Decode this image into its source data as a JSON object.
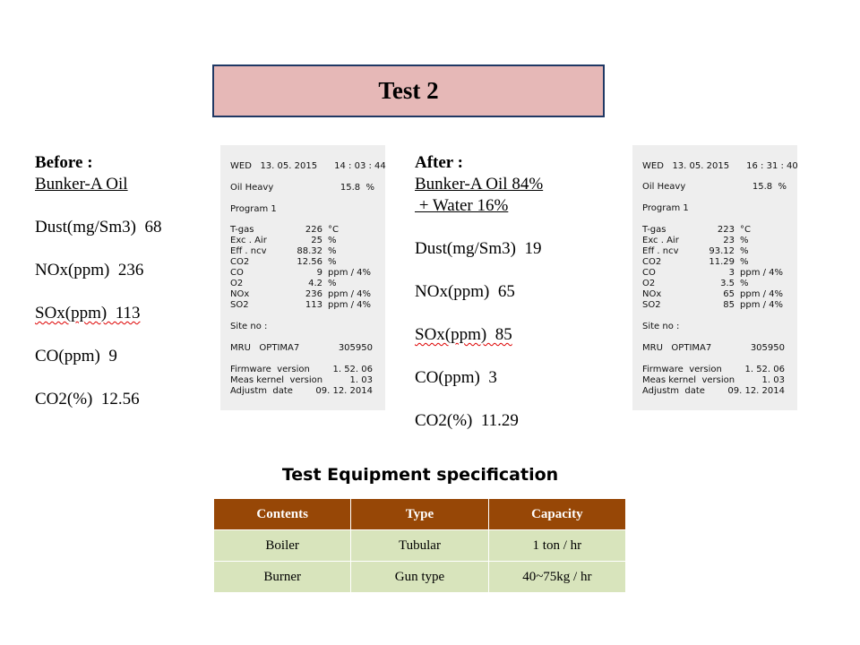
{
  "title": "Test 2",
  "before": {
    "heading": "Before :",
    "fuel": "Bunker-A Oil",
    "dust": "Dust(mg/Sm3)  68",
    "nox": "NOx(ppm)  236",
    "sox": "SOx(ppm)  113",
    "co": "CO(ppm)  9",
    "co2": "CO2(%)  12.56"
  },
  "after": {
    "heading": "After :",
    "fuel": "Bunker-A Oil 84%",
    "water": " + Water 16%",
    "dust": "Dust(mg/Sm3)  19",
    "nox": "NOx(ppm)  65",
    "sox": "SOx(ppm)  85",
    "co": "CO(ppm)  3",
    "co2": "CO2(%)  11.29"
  },
  "printout_before": {
    "date": "WED   13. 05. 2015      14 : 03 : 44",
    "oil": "Oil Heavy",
    "oil_val": "15.8  %",
    "program": "Program 1",
    "rows": [
      {
        "label": "T-gas",
        "value": "226",
        "unit": "°C"
      },
      {
        "label": "Exc . Air",
        "value": "25",
        "unit": "%"
      },
      {
        "label": "Eff . ncv",
        "value": "88.32",
        "unit": "%"
      },
      {
        "label": "CO2",
        "value": "12.56",
        "unit": "%"
      },
      {
        "label": "CO",
        "value": "9",
        "unit": "ppm / 4%"
      },
      {
        "label": "O2",
        "value": "4.2",
        "unit": "%"
      },
      {
        "label": "NOx",
        "value": "236",
        "unit": "ppm / 4%"
      },
      {
        "label": "SO2",
        "value": "113",
        "unit": "ppm / 4%"
      }
    ],
    "site": "Site no :",
    "mru": "MRU   OPTIMA7",
    "mru_val": "305950",
    "fw": [
      {
        "label": "Firmware  version",
        "value": "1. 52. 06"
      },
      {
        "label": "Meas kernel  version",
        "value": "1. 03"
      },
      {
        "label": "Adjustm  date",
        "value": "09. 12. 2014"
      }
    ]
  },
  "printout_after": {
    "date": "WED   13. 05. 2015      16 : 31 : 40",
    "oil": "Oil Heavy",
    "oil_val": "15.8  %",
    "program": "Program 1",
    "rows": [
      {
        "label": "T-gas",
        "value": "223",
        "unit": "°C"
      },
      {
        "label": "Exc . Air",
        "value": "23",
        "unit": "%"
      },
      {
        "label": "Eff . ncv",
        "value": "93.12",
        "unit": "%"
      },
      {
        "label": "CO2",
        "value": "11.29",
        "unit": "%"
      },
      {
        "label": "CO",
        "value": "3",
        "unit": "ppm / 4%"
      },
      {
        "label": "O2",
        "value": "3.5",
        "unit": "%"
      },
      {
        "label": "NOx",
        "value": "65",
        "unit": "ppm / 4%"
      },
      {
        "label": "SO2",
        "value": "85",
        "unit": "ppm / 4%"
      }
    ],
    "site": "Site no :",
    "mru": "MRU   OPTIMA7",
    "mru_val": "305950",
    "fw": [
      {
        "label": "Firmware  version",
        "value": "1. 52. 06"
      },
      {
        "label": "Meas kernel  version",
        "value": "1. 03"
      },
      {
        "label": "Adjustm  date",
        "value": "09. 12. 2014"
      }
    ]
  },
  "equipment": {
    "title": "Test Equipment specification",
    "headers": [
      "Contents",
      "Type",
      "Capacity"
    ],
    "rows": [
      [
        "Boiler",
        "Tubular",
        "1 ton / hr"
      ],
      [
        "Burner",
        "Gun type",
        "40~75kg / hr"
      ]
    ]
  },
  "colors": {
    "title_fill": "#e6b8b7",
    "title_border": "#1f3864",
    "table_header": "#974706",
    "table_cell": "#d8e4bc",
    "printout_bg": "#eeeeee"
  }
}
